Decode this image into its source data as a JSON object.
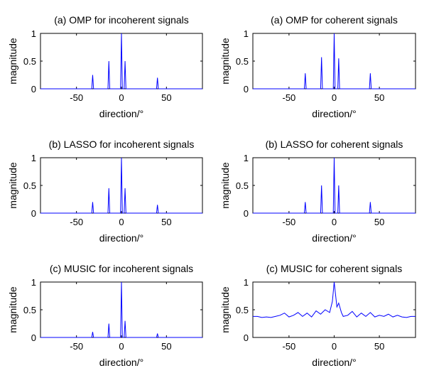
{
  "chart_data": [
    {
      "type": "line",
      "title": "(a) OMP for incoherent signals",
      "xlabel": "direction/°",
      "ylabel": "magnitude",
      "x": [
        -90,
        -33,
        -32,
        -31,
        -15,
        -14,
        -13,
        -1,
        0,
        1,
        3,
        4,
        5,
        39,
        40,
        41,
        90
      ],
      "values": [
        0,
        0,
        0.25,
        0,
        0,
        0.5,
        0,
        0,
        1,
        0,
        0,
        0.5,
        0,
        0,
        0.2,
        0,
        0
      ],
      "color": "#0000ff",
      "xlim": [
        -90,
        90
      ],
      "ylim": [
        0,
        1
      ],
      "xticks": [
        -50,
        0,
        50
      ],
      "yticks": [
        0,
        0.5,
        1
      ]
    },
    {
      "type": "line",
      "title": "(a) OMP for coherent signals",
      "xlabel": "direction/°",
      "ylabel": "magnitude",
      "x": [
        -90,
        -33,
        -32,
        -31,
        -15,
        -14,
        -13,
        -1,
        0,
        1,
        4,
        5,
        6,
        39,
        40,
        41,
        90
      ],
      "values": [
        0,
        0,
        0.28,
        0,
        0,
        0.57,
        0,
        0,
        1,
        0,
        0,
        0.55,
        0,
        0,
        0.28,
        0,
        0
      ],
      "color": "#0000ff",
      "xlim": [
        -90,
        90
      ],
      "ylim": [
        0,
        1
      ],
      "xticks": [
        -50,
        0,
        50
      ],
      "yticks": [
        0,
        0.5,
        1
      ]
    },
    {
      "type": "line",
      "title": "(b) LASSO for incoherent signals",
      "xlabel": "direction/°",
      "ylabel": "magnitude",
      "x": [
        -90,
        -33,
        -32,
        -31,
        -15,
        -14,
        -13,
        -1,
        0,
        1,
        3,
        4,
        5,
        39,
        40,
        41,
        90
      ],
      "values": [
        0,
        0,
        0.2,
        0,
        0,
        0.45,
        0,
        0,
        1,
        0,
        0,
        0.45,
        0,
        0,
        0.15,
        0,
        0
      ],
      "color": "#0000ff",
      "xlim": [
        -90,
        90
      ],
      "ylim": [
        0,
        1
      ],
      "xticks": [
        -50,
        0,
        50
      ],
      "yticks": [
        0,
        0.5,
        1
      ]
    },
    {
      "type": "line",
      "title": "(b) LASSO for coherent signals",
      "xlabel": "direction/°",
      "ylabel": "magnitude",
      "x": [
        -90,
        -33,
        -32,
        -31,
        -15,
        -14,
        -13,
        -1,
        0,
        1,
        4,
        5,
        6,
        39,
        40,
        41,
        90
      ],
      "values": [
        0,
        0,
        0.2,
        0,
        0,
        0.5,
        0,
        0,
        1,
        0,
        0,
        0.5,
        0,
        0,
        0.2,
        0,
        0
      ],
      "color": "#0000ff",
      "xlim": [
        -90,
        90
      ],
      "ylim": [
        0,
        1
      ],
      "xticks": [
        -50,
        0,
        50
      ],
      "yticks": [
        0,
        0.5,
        1
      ]
    },
    {
      "type": "line",
      "title": "(c) MUSIC for incoherent signals",
      "xlabel": "direction/°",
      "ylabel": "magnitude",
      "x": [
        -90,
        -33,
        -32,
        -31,
        -15,
        -14,
        -13,
        -1,
        0,
        1,
        3,
        4,
        5,
        39,
        40,
        41,
        90
      ],
      "values": [
        0,
        0,
        0.1,
        0,
        0,
        0.25,
        0,
        0,
        1,
        0,
        0,
        0.3,
        0,
        0,
        0.07,
        0,
        0
      ],
      "color": "#0000ff",
      "xlim": [
        -90,
        90
      ],
      "ylim": [
        0,
        1
      ],
      "xticks": [
        -50,
        0,
        50
      ],
      "yticks": [
        0,
        0.5,
        1
      ]
    },
    {
      "type": "line",
      "title": "(c) MUSIC for coherent signals",
      "xlabel": "direction/°",
      "ylabel": "magnitude",
      "x": [
        -90,
        -85,
        -80,
        -75,
        -70,
        -65,
        -60,
        -55,
        -50,
        -45,
        -40,
        -35,
        -30,
        -25,
        -20,
        -15,
        -10,
        -5,
        -2,
        0,
        3,
        5,
        8,
        10,
        15,
        20,
        25,
        30,
        35,
        40,
        45,
        50,
        55,
        60,
        65,
        70,
        75,
        80,
        85,
        90
      ],
      "values": [
        0.38,
        0.38,
        0.36,
        0.37,
        0.36,
        0.38,
        0.4,
        0.44,
        0.37,
        0.4,
        0.45,
        0.38,
        0.44,
        0.37,
        0.48,
        0.42,
        0.5,
        0.45,
        0.65,
        1,
        0.55,
        0.62,
        0.45,
        0.38,
        0.4,
        0.47,
        0.37,
        0.44,
        0.38,
        0.45,
        0.37,
        0.4,
        0.38,
        0.42,
        0.37,
        0.4,
        0.37,
        0.36,
        0.38,
        0.38
      ],
      "color": "#0000ff",
      "xlim": [
        -90,
        90
      ],
      "ylim": [
        0,
        1
      ],
      "xticks": [
        -50,
        0,
        50
      ],
      "yticks": [
        0,
        0.5,
        1
      ]
    }
  ]
}
